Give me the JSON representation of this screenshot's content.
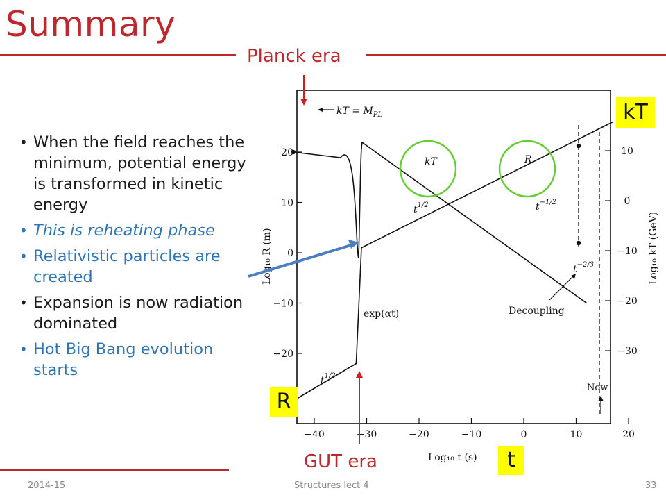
{
  "slide": {
    "title": "Summary",
    "bullets": [
      {
        "text": "When the field reaches the minimum, potential energy is transformed in kinetic energy",
        "style": "normal"
      },
      {
        "text": "This is reheating phase",
        "style": "blue-italic"
      },
      {
        "text": "Relativistic particles are created",
        "style": "blue"
      },
      {
        "text": "Expansion is now radiation dominated",
        "style": "normal"
      },
      {
        "text": "Hot Big Bang evolution starts",
        "style": "blue"
      }
    ],
    "footer": {
      "left": "2014-15",
      "center": "Structures lect 4",
      "right": "33"
    }
  },
  "annotations": {
    "planck_era": "Planck era",
    "gut_era": "GUT era",
    "kT_box": "kT",
    "R_box": "R",
    "t_box": "t"
  },
  "colors": {
    "title_red": "#c0272d",
    "accent_blue": "#2e75b6",
    "highlight_yellow": "#ffff00",
    "circle_green": "#66cc33",
    "arrow_blue": "#4a7fc1"
  },
  "chart_data": {
    "type": "line",
    "xlabel": "Log₁₀ t (s)",
    "ylabel_left": "Log₁₀ R (m)",
    "ylabel_right": "Log₁₀ kT (GeV)",
    "x_ticks": [
      "−40",
      "−30",
      "−20",
      "−10",
      "0",
      "10",
      "20"
    ],
    "y_left_ticks": [
      "20",
      "10",
      "0",
      "−10",
      "−20"
    ],
    "y_right_ticks": [
      "10",
      "0",
      "−10",
      "−20",
      "−30"
    ],
    "xlim": [
      -45,
      20
    ],
    "series": [
      {
        "name": "R",
        "points": [
          [
            -45,
            -30
          ],
          [
            -32,
            -22
          ],
          [
            -31,
            1
          ],
          [
            17,
            26
          ]
        ]
      },
      {
        "name": "kT",
        "points": [
          [
            -44,
            20
          ],
          [
            -35,
            20
          ],
          [
            -32,
            10
          ],
          [
            12,
            -10
          ]
        ]
      }
    ],
    "labels": {
      "kT_eq": "kT = M",
      "kT_eq_sub": "PL",
      "kT_curve": "kT",
      "R_curve": "R",
      "t_half_1": "t",
      "t_half_1_exp": "1/2",
      "t_half_2": "t",
      "t_half_2_exp": "1/2",
      "t_minus_half": "t",
      "t_minus_half_exp": "−1/2",
      "t_minus_twothird": "t",
      "t_minus_twothird_exp": "−2/3",
      "exp_at": "exp(αt)",
      "decoupling": "Decoupling",
      "now": "Now"
    }
  }
}
